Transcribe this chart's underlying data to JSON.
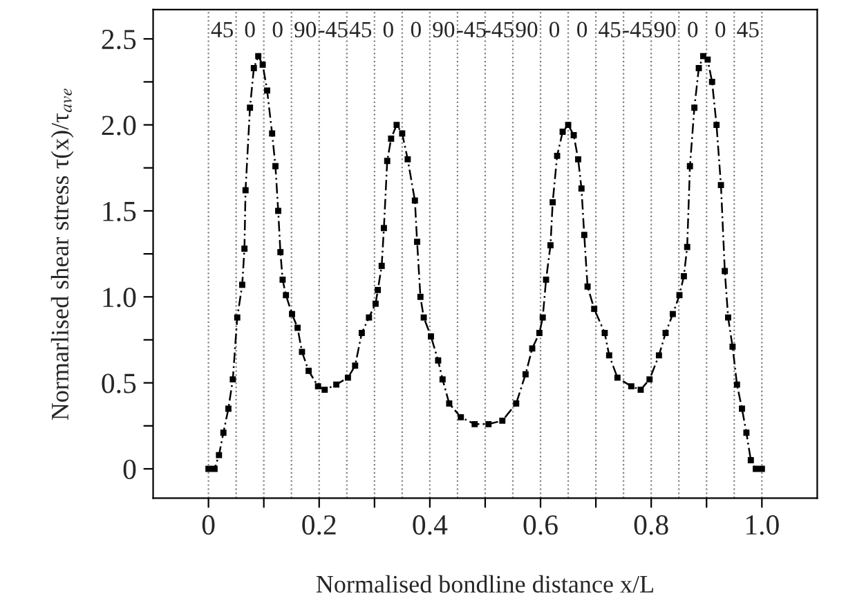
{
  "chart_data": {
    "type": "line",
    "xlabel": "Normalised bondline distance x/L",
    "ylabel": "Normarlised shear stress τ(x)/τ$_{ave}$",
    "series": [
      {
        "color": "#000000",
        "x": [
          0,
          0.011,
          0.019,
          0.027,
          0.036,
          0.044,
          0.052,
          0.061,
          0.065,
          0.067,
          0.075,
          0.082,
          0.09,
          0.098,
          0.106,
          0.115,
          0.121,
          0.126,
          0.13,
          0.134,
          0.14,
          0.151,
          0.161,
          0.169,
          0.181,
          0.198,
          0.21,
          0.231,
          0.252,
          0.265,
          0.277,
          0.29,
          0.302,
          0.306,
          0.313,
          0.317,
          0.323,
          0.33,
          0.34,
          0.35,
          0.36,
          0.373,
          0.377,
          0.383,
          0.389,
          0.402,
          0.415,
          0.423,
          0.435,
          0.456,
          0.481,
          0.506,
          0.531,
          0.556,
          0.573,
          0.585,
          0.598,
          0.604,
          0.61,
          0.618,
          0.622,
          0.63,
          0.64,
          0.65,
          0.66,
          0.668,
          0.674,
          0.679,
          0.685,
          0.697,
          0.716,
          0.724,
          0.739,
          0.764,
          0.781,
          0.797,
          0.814,
          0.826,
          0.839,
          0.851,
          0.859,
          0.865,
          0.87,
          0.878,
          0.886,
          0.894,
          0.902,
          0.91,
          0.918,
          0.926,
          0.933,
          0.939,
          0.947,
          0.955,
          0.964,
          0.972,
          0.98,
          0.989,
          1.0
        ],
        "values": [
          0,
          0,
          0.08,
          0.21,
          0.35,
          0.52,
          0.88,
          1.07,
          1.28,
          1.62,
          2.1,
          2.33,
          2.4,
          2.35,
          2.2,
          1.95,
          1.76,
          1.5,
          1.26,
          1.1,
          1.01,
          0.9,
          0.82,
          0.68,
          0.57,
          0.48,
          0.46,
          0.49,
          0.53,
          0.6,
          0.79,
          0.88,
          0.96,
          1.04,
          1.18,
          1.4,
          1.79,
          1.92,
          2.0,
          1.95,
          1.8,
          1.56,
          1.32,
          1.0,
          0.88,
          0.77,
          0.63,
          0.52,
          0.38,
          0.3,
          0.26,
          0.26,
          0.28,
          0.38,
          0.55,
          0.7,
          0.79,
          0.88,
          1.1,
          1.3,
          1.55,
          1.82,
          1.96,
          2.0,
          1.94,
          1.8,
          1.63,
          1.36,
          1.06,
          0.93,
          0.79,
          0.66,
          0.53,
          0.48,
          0.46,
          0.52,
          0.66,
          0.79,
          0.9,
          1.01,
          1.12,
          1.29,
          1.76,
          2.1,
          2.33,
          2.4,
          2.38,
          2.25,
          2.0,
          1.65,
          1.15,
          0.88,
          0.71,
          0.49,
          0.35,
          0.21,
          0.05,
          0,
          0
        ]
      }
    ],
    "marker": "square",
    "line_style": "dashed",
    "xlim": [
      -0.1,
      1.1
    ],
    "xticks": [
      0,
      {
        "value": 0.1,
        "label": null
      },
      0.2,
      {
        "value": 0.3,
        "label": null
      },
      0.4,
      {
        "value": 0.5,
        "label": null
      },
      0.6,
      {
        "value": 0.7,
        "label": null
      },
      0.8,
      {
        "value": 0.9,
        "label": null
      },
      {
        "value": 1.0,
        "label": "1.0"
      }
    ],
    "ylim": [
      -0.17,
      2.67
    ],
    "yticks": [
      0,
      {
        "value": 0.25,
        "label": null
      },
      0.5,
      {
        "value": 0.75,
        "label": null
      },
      {
        "value": 1.0,
        "label": "1.0"
      },
      {
        "value": 1.25,
        "label": null
      },
      1.5,
      {
        "value": 1.75,
        "label": null
      },
      {
        "value": 2.0,
        "label": "2.0"
      },
      {
        "value": 2.25,
        "label": null
      },
      2.5
    ],
    "ref_lines": [
      {
        "axis": "x",
        "value": 0,
        "color": "#808080",
        "line_style": "dotted"
      },
      {
        "axis": "x",
        "value": 0.05,
        "color": "#808080",
        "line_style": "dotted"
      },
      {
        "axis": "x",
        "value": 0.1,
        "color": "#808080",
        "line_style": "dotted"
      },
      {
        "axis": "x",
        "value": 0.15,
        "color": "#808080",
        "line_style": "dotted"
      },
      {
        "axis": "x",
        "value": 0.2,
        "color": "#808080",
        "line_style": "dotted"
      },
      {
        "axis": "x",
        "value": 0.25,
        "color": "#808080",
        "line_style": "dotted"
      },
      {
        "axis": "x",
        "value": 0.3,
        "color": "#808080",
        "line_style": "dotted"
      },
      {
        "axis": "x",
        "value": 0.35,
        "color": "#808080",
        "line_style": "dotted"
      },
      {
        "axis": "x",
        "value": 0.4,
        "color": "#808080",
        "line_style": "dotted"
      },
      {
        "axis": "x",
        "value": 0.45,
        "color": "#808080",
        "line_style": "dotted"
      },
      {
        "axis": "x",
        "value": 0.5,
        "color": "#808080",
        "line_style": "dotted"
      },
      {
        "axis": "x",
        "value": 0.55,
        "color": "#808080",
        "line_style": "dotted"
      },
      {
        "axis": "x",
        "value": 0.6,
        "color": "#808080",
        "line_style": "dotted"
      },
      {
        "axis": "x",
        "value": 0.65,
        "color": "#808080",
        "line_style": "dotted"
      },
      {
        "axis": "x",
        "value": 0.7,
        "color": "#808080",
        "line_style": "dotted"
      },
      {
        "axis": "x",
        "value": 0.75,
        "color": "#808080",
        "line_style": "dotted"
      },
      {
        "axis": "x",
        "value": 0.8,
        "color": "#808080",
        "line_style": "dotted"
      },
      {
        "axis": "x",
        "value": 0.85,
        "color": "#808080",
        "line_style": "dotted"
      },
      {
        "axis": "x",
        "value": 0.9,
        "color": "#808080",
        "line_style": "dotted"
      },
      {
        "axis": "x",
        "value": 0.95,
        "color": "#808080",
        "line_style": "dotted"
      },
      {
        "axis": "x",
        "value": 1.0,
        "color": "#808080",
        "line_style": "dotted"
      }
    ],
    "annotations": [
      "45",
      "0",
      "0",
      "90",
      "-45",
      "45",
      "0",
      "0",
      "90",
      "-45",
      "-45",
      "90",
      "0",
      "0",
      "45",
      "-45",
      "90",
      "0",
      "0",
      "45"
    ]
  }
}
